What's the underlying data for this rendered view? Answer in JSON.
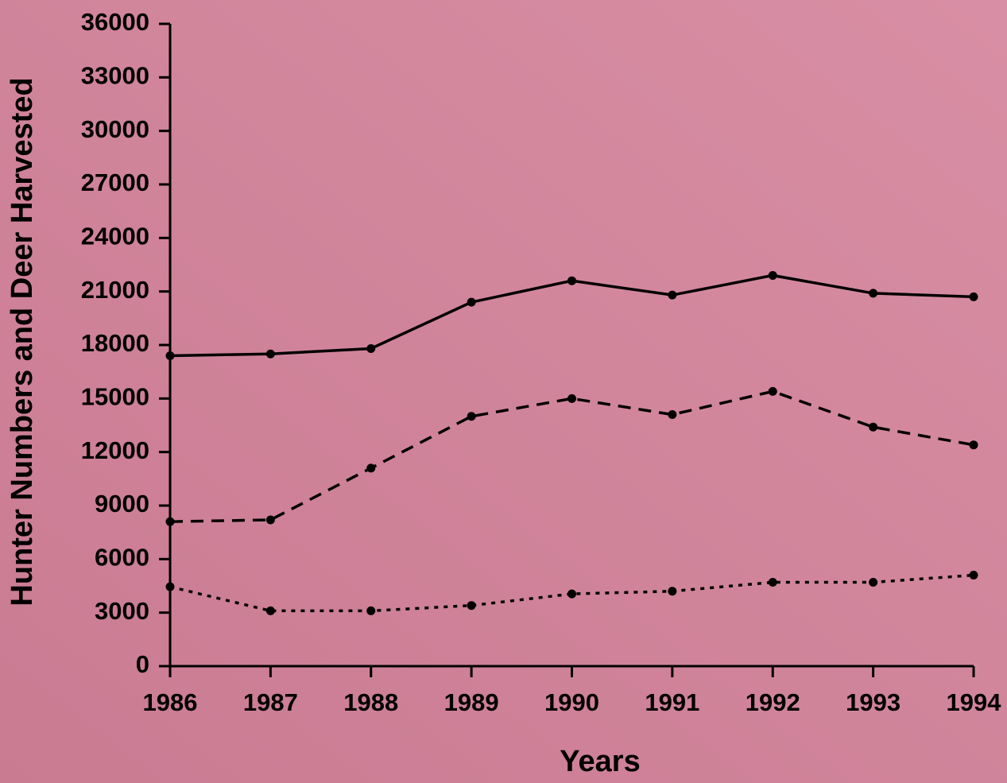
{
  "chart_data": {
    "type": "line",
    "x": [
      1986,
      1987,
      1988,
      1989,
      1990,
      1991,
      1992,
      1993,
      1994
    ],
    "xlim": [
      1986,
      1994
    ],
    "xticks": [
      1986,
      1987,
      1988,
      1989,
      1990,
      1991,
      1992,
      1993,
      1994
    ],
    "ylim": [
      0,
      36000
    ],
    "yticks": [
      0,
      3000,
      6000,
      9000,
      12000,
      15000,
      18000,
      21000,
      24000,
      27000,
      30000,
      33000,
      36000
    ],
    "xlabel": "Years",
    "ylabel": "Hunter Numbers and Deer Harvested",
    "grid": false,
    "series": [
      {
        "color": "#000000",
        "dash": "solid",
        "values": [
          17400,
          17500,
          17800,
          20400,
          21600,
          20800,
          21900,
          20900,
          20700
        ]
      },
      {
        "color": "#000000",
        "dash": "dashed",
        "values": [
          8100,
          8200,
          11100,
          14000,
          15000,
          14100,
          15400,
          13400,
          12400
        ]
      },
      {
        "color": "#000000",
        "dash": "dotted",
        "values": [
          4450,
          3100,
          3100,
          3400,
          4050,
          4200,
          4700,
          4700,
          5100
        ]
      }
    ]
  }
}
